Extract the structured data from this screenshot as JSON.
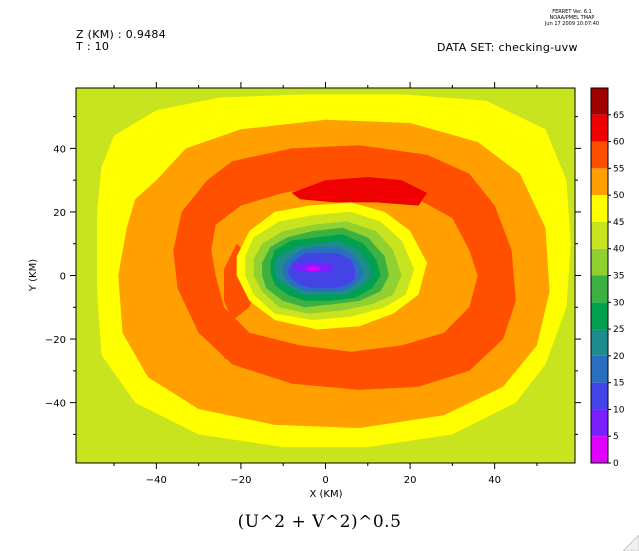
{
  "header": {
    "z_label": "Z (KM) : 0.9484",
    "t_label": "T : 10",
    "dataset_label": "DATA SET: checking-uvw",
    "stamp_line1": "FERRET Ver. 6.1",
    "stamp_line2": "NOAA/PMEL TMAP",
    "stamp_line3": "Jun 17 2009 10:07:40"
  },
  "caption": "(U^2 + V^2)^0.5",
  "chart_data": {
    "type": "heatmap",
    "title": "(U^2 + V^2)^0.5",
    "xlabel": "X (KM)",
    "ylabel": "Y (KM)",
    "xlim": [
      -59,
      59
    ],
    "ylim": [
      -59,
      59
    ],
    "x_ticks": [
      -40,
      -20,
      0,
      20,
      40
    ],
    "y_ticks": [
      -40,
      -20,
      0,
      20,
      40
    ],
    "x_ticklabels": [
      "−40",
      "−20",
      "0",
      "20",
      "40"
    ],
    "y_ticklabels": [
      "−40",
      "−20",
      "0",
      "20",
      "40"
    ],
    "grid": false,
    "colorbar": {
      "placement": "right",
      "levels": [
        0,
        5,
        10,
        15,
        20,
        25,
        30,
        35,
        40,
        45,
        50,
        55,
        60,
        65
      ],
      "level_labels": [
        "0",
        "5",
        "10",
        "15",
        "20",
        "25",
        "30",
        "35",
        "40",
        "45",
        "50",
        "55",
        "60",
        "65"
      ],
      "colors": [
        "#e000ff",
        "#7a1fff",
        "#4444e6",
        "#2a6fbf",
        "#1c8c8c",
        "#00a050",
        "#3cb040",
        "#90d030",
        "#c8e41e",
        "#ffff00",
        "#ffa000",
        "#ff5000",
        "#ee0000",
        "#a00000"
      ]
    },
    "regions": [
      {
        "level": 40,
        "points": [
          [
            -59,
            59
          ],
          [
            59,
            59
          ],
          [
            59,
            -59
          ],
          [
            -59,
            -59
          ]
        ]
      },
      {
        "level": 45,
        "points": [
          [
            -50,
            44
          ],
          [
            -40,
            52
          ],
          [
            -25,
            56
          ],
          [
            -5,
            57
          ],
          [
            18,
            57
          ],
          [
            38,
            55
          ],
          [
            52,
            46
          ],
          [
            57,
            30
          ],
          [
            58,
            10
          ],
          [
            57,
            -10
          ],
          [
            52,
            -28
          ],
          [
            45,
            -40
          ],
          [
            30,
            -50
          ],
          [
            10,
            -54
          ],
          [
            -10,
            -54
          ],
          [
            -30,
            -50
          ],
          [
            -45,
            -40
          ],
          [
            -53,
            -25
          ],
          [
            -54,
            -5
          ],
          [
            -54,
            20
          ],
          [
            -53,
            34
          ]
        ]
      },
      {
        "level": 50,
        "points": [
          [
            -40,
            30
          ],
          [
            -33,
            40
          ],
          [
            -20,
            46
          ],
          [
            0,
            49
          ],
          [
            20,
            48
          ],
          [
            36,
            42
          ],
          [
            46,
            32
          ],
          [
            52,
            15
          ],
          [
            53,
            -5
          ],
          [
            50,
            -22
          ],
          [
            42,
            -35
          ],
          [
            28,
            -44
          ],
          [
            8,
            -48
          ],
          [
            -12,
            -47
          ],
          [
            -30,
            -42
          ],
          [
            -42,
            -32
          ],
          [
            -48,
            -18
          ],
          [
            -49,
            0
          ],
          [
            -47,
            15
          ],
          [
            -45,
            24
          ]
        ]
      },
      {
        "level": 55,
        "points": [
          [
            -28,
            30
          ],
          [
            -22,
            36
          ],
          [
            -8,
            40
          ],
          [
            8,
            41
          ],
          [
            24,
            38
          ],
          [
            34,
            32
          ],
          [
            40,
            22
          ],
          [
            44,
            8
          ],
          [
            45,
            -8
          ],
          [
            42,
            -20
          ],
          [
            34,
            -30
          ],
          [
            22,
            -35
          ],
          [
            8,
            -36
          ],
          [
            -8,
            -34
          ],
          [
            -22,
            -28
          ],
          [
            -30,
            -18
          ],
          [
            -35,
            -4
          ],
          [
            -36,
            8
          ],
          [
            -34,
            20
          ]
        ]
      },
      {
        "level": 50,
        "points": [
          [
            -26,
            16
          ],
          [
            -20,
            22
          ],
          [
            -10,
            26
          ],
          [
            0,
            28
          ],
          [
            12,
            27
          ],
          [
            22,
            24
          ],
          [
            30,
            18
          ],
          [
            34,
            8
          ],
          [
            36,
            0
          ],
          [
            34,
            -10
          ],
          [
            28,
            -18
          ],
          [
            18,
            -22
          ],
          [
            6,
            -24
          ],
          [
            -6,
            -22
          ],
          [
            -18,
            -18
          ],
          [
            -24,
            -10
          ],
          [
            -26,
            0
          ],
          [
            -27,
            8
          ]
        ]
      },
      {
        "level": 55,
        "points": [
          [
            -21,
            10
          ],
          [
            -18,
            6
          ],
          [
            -16,
            -2
          ],
          [
            -18,
            -10
          ],
          [
            -22,
            -14
          ],
          [
            -24,
            -8
          ],
          [
            -24,
            2
          ]
        ]
      },
      {
        "level": 55,
        "points": [
          [
            -22,
            -20
          ],
          [
            -18,
            -22
          ],
          [
            -16,
            -26
          ],
          [
            -20,
            -28
          ],
          [
            -24,
            -26
          ]
        ]
      },
      {
        "level": 60,
        "points": [
          [
            -8,
            26
          ],
          [
            0,
            30
          ],
          [
            10,
            31
          ],
          [
            18,
            30
          ],
          [
            24,
            26
          ],
          [
            22,
            22
          ],
          [
            12,
            23
          ],
          [
            2,
            23
          ],
          [
            -6,
            24
          ]
        ]
      },
      {
        "level": 45,
        "points": [
          [
            -18,
            14
          ],
          [
            -12,
            20
          ],
          [
            -4,
            22
          ],
          [
            6,
            23
          ],
          [
            14,
            20
          ],
          [
            20,
            14
          ],
          [
            24,
            4
          ],
          [
            22,
            -6
          ],
          [
            16,
            -12
          ],
          [
            8,
            -16
          ],
          [
            -2,
            -17
          ],
          [
            -12,
            -14
          ],
          [
            -18,
            -8
          ],
          [
            -21,
            0
          ],
          [
            -21,
            6
          ]
        ]
      },
      {
        "level": 40,
        "points": [
          [
            -17,
            12
          ],
          [
            -11,
            17
          ],
          [
            -3,
            19
          ],
          [
            6,
            20
          ],
          [
            13,
            17
          ],
          [
            18,
            11
          ],
          [
            21,
            2
          ],
          [
            19,
            -6
          ],
          [
            14,
            -10
          ],
          [
            6,
            -13
          ],
          [
            -3,
            -14
          ],
          [
            -12,
            -12
          ],
          [
            -17,
            -6
          ],
          [
            -19,
            0
          ],
          [
            -19,
            6
          ]
        ]
      },
      {
        "level": 35,
        "points": [
          [
            -15,
            10
          ],
          [
            -10,
            14
          ],
          [
            -3,
            16
          ],
          [
            5,
            17
          ],
          [
            12,
            14
          ],
          [
            16,
            8
          ],
          [
            18,
            0
          ],
          [
            16,
            -6
          ],
          [
            11,
            -9
          ],
          [
            4,
            -11
          ],
          [
            -4,
            -12
          ],
          [
            -11,
            -10
          ],
          [
            -15,
            -5
          ],
          [
            -17,
            0
          ],
          [
            -17,
            5
          ]
        ]
      },
      {
        "level": 30,
        "points": [
          [
            -13,
            9
          ],
          [
            -9,
            12
          ],
          [
            -3,
            14
          ],
          [
            4,
            15
          ],
          [
            10,
            12
          ],
          [
            14,
            6
          ],
          [
            15,
            0
          ],
          [
            13,
            -5
          ],
          [
            8,
            -8
          ],
          [
            2,
            -9
          ],
          [
            -5,
            -10
          ],
          [
            -10,
            -8
          ],
          [
            -14,
            -4
          ],
          [
            -15,
            0
          ],
          [
            -15,
            4
          ]
        ]
      },
      {
        "level": 25,
        "points": [
          [
            -12,
            8
          ],
          [
            -8,
            11
          ],
          [
            -2,
            12
          ],
          [
            4,
            13
          ],
          [
            9,
            10
          ],
          [
            12,
            5
          ],
          [
            13,
            0
          ],
          [
            11,
            -4
          ],
          [
            7,
            -7
          ],
          [
            1,
            -8
          ],
          [
            -5,
            -8
          ],
          [
            -9,
            -6
          ],
          [
            -12,
            -3
          ],
          [
            -13,
            1
          ],
          [
            -13,
            4
          ]
        ]
      },
      {
        "level": 20,
        "points": [
          [
            -11,
            6
          ],
          [
            -7,
            9
          ],
          [
            -2,
            10
          ],
          [
            3,
            11
          ],
          [
            8,
            8
          ],
          [
            10,
            4
          ],
          [
            11,
            0
          ],
          [
            9,
            -3
          ],
          [
            5,
            -6
          ],
          [
            0,
            -6
          ],
          [
            -5,
            -6
          ],
          [
            -8,
            -4
          ],
          [
            -11,
            -2
          ],
          [
            -12,
            1
          ],
          [
            -12,
            4
          ]
        ]
      },
      {
        "level": 15,
        "points": [
          [
            -9,
            5
          ],
          [
            -6,
            8
          ],
          [
            -2,
            9
          ],
          [
            3,
            9
          ],
          [
            6,
            7
          ],
          [
            8,
            4
          ],
          [
            9,
            0
          ],
          [
            7,
            -3
          ],
          [
            4,
            -5
          ],
          [
            0,
            -5
          ],
          [
            -5,
            -5
          ],
          [
            -8,
            -3
          ],
          [
            -10,
            0
          ],
          [
            -10,
            3
          ]
        ]
      },
      {
        "level": 10,
        "points": [
          [
            -8,
            4
          ],
          [
            -5,
            7
          ],
          [
            -1,
            7
          ],
          [
            3,
            7
          ],
          [
            6,
            5
          ],
          [
            7,
            2
          ],
          [
            7,
            -1
          ],
          [
            5,
            -3
          ],
          [
            2,
            -4
          ],
          [
            -3,
            -4
          ],
          [
            -6,
            -3
          ],
          [
            -8,
            -1
          ],
          [
            -9,
            1
          ]
        ]
      },
      {
        "level": 5,
        "points": [
          [
            -8,
            3
          ],
          [
            -5,
            4
          ],
          [
            -1,
            4
          ],
          [
            2,
            3
          ],
          [
            1,
            1
          ],
          [
            -3,
            1
          ],
          [
            -6,
            1
          ]
        ]
      },
      {
        "level": 0,
        "points": [
          [
            -5,
            2.5
          ],
          [
            -3,
            3
          ],
          [
            -1,
            2.5
          ],
          [
            -1.5,
            1.5
          ],
          [
            -4,
            1.5
          ]
        ]
      }
    ]
  }
}
